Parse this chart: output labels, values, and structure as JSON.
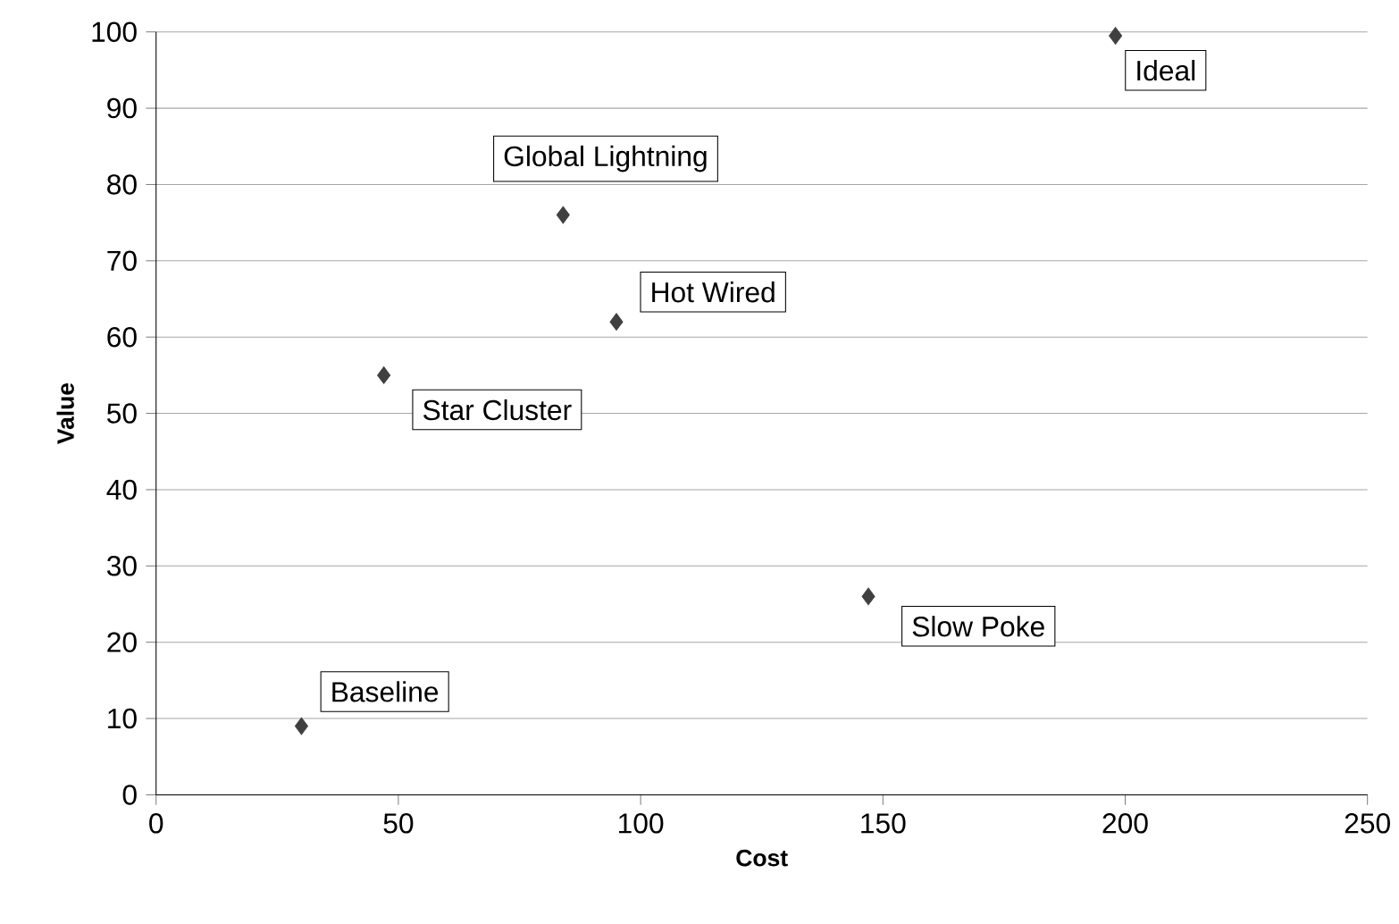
{
  "chart_data": {
    "type": "scatter",
    "xlabel": "Cost",
    "ylabel": "Value",
    "x": [
      30,
      47,
      84,
      95,
      147,
      198
    ],
    "values": [
      9,
      55,
      76,
      62,
      26,
      99.5
    ],
    "color": "#404040",
    "marker": "diamond",
    "xlim": [
      0,
      250
    ],
    "xticks": [
      0,
      50,
      100,
      150,
      200,
      250
    ],
    "ylim": [
      0,
      100
    ],
    "yticks": [
      0,
      10,
      20,
      30,
      40,
      50,
      60,
      70,
      80,
      90,
      100
    ],
    "grid": "y",
    "annotations": [
      {
        "text": "Baseline",
        "x": 30,
        "y": 9
      },
      {
        "text": "Star Cluster",
        "x": 47,
        "y": 55
      },
      {
        "text": "Global Lightning",
        "x": 84,
        "y": 76
      },
      {
        "text": "Hot Wired",
        "x": 95,
        "y": 62
      },
      {
        "text": "Slow Poke",
        "x": 147,
        "y": 26
      },
      {
        "text": "Ideal",
        "x": 198,
        "y": 99.5
      }
    ]
  }
}
